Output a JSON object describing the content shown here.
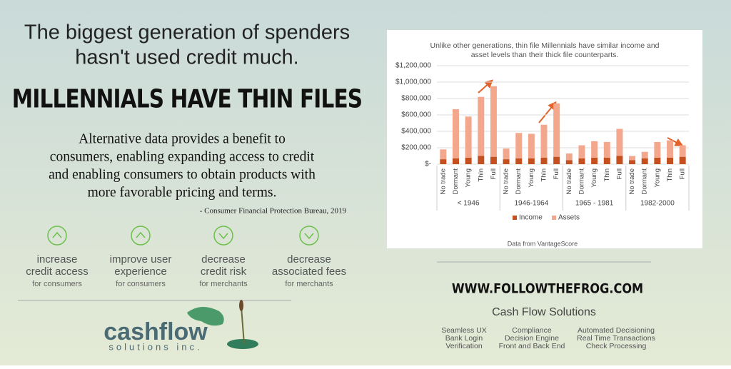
{
  "header": {
    "tagline_lines": [
      "The biggest generation of spenders",
      "hasn't used credit much."
    ],
    "headline": "MILLENNIALS HAVE THIN FILES"
  },
  "quote": {
    "lines": [
      "Alternative data provides a benefit to",
      "consumers, enabling expanding access to credit",
      "and enabling consumers to obtain products with",
      "more favorable pricing and terms."
    ],
    "source": "- Consumer Financial Protection Bureau, 2019"
  },
  "benefits": [
    {
      "icon": "up",
      "title_lines": [
        "increase",
        "credit access"
      ],
      "subtitle": "for consumers"
    },
    {
      "icon": "up",
      "title_lines": [
        "improve user",
        "experience"
      ],
      "subtitle": "for consumers"
    },
    {
      "icon": "down",
      "title_lines": [
        "decrease",
        "credit risk"
      ],
      "subtitle": "for merchants"
    },
    {
      "icon": "down",
      "title_lines": [
        "decrease",
        "associated fees"
      ],
      "subtitle": "for merchants"
    }
  ],
  "logo": {
    "name": "cashflow",
    "subtitle": "solutions inc."
  },
  "chart_data": {
    "type": "stacked-bar",
    "title_lines": [
      "Unlike other generations, thin file Millennials have similar income and",
      "asset levels than their thick file counterparts."
    ],
    "categories": [
      "No trade",
      "Dormant",
      "Young",
      "Thin",
      "Full",
      "No trade",
      "Dormant",
      "Young",
      "Thin",
      "Full",
      "No trade",
      "Dormant",
      "Young",
      "Thin",
      "Full",
      "No trade",
      "Dormant",
      "Young",
      "Thin",
      "Full"
    ],
    "groups": [
      "< 1946",
      "1946-1964",
      "1965 - 1981",
      "1982-2000"
    ],
    "series": [
      {
        "name": "Income",
        "color": "#c4501f",
        "values": [
          60000,
          70000,
          80000,
          100000,
          90000,
          60000,
          70000,
          70000,
          80000,
          90000,
          50000,
          70000,
          80000,
          80000,
          100000,
          50000,
          70000,
          80000,
          80000,
          90000
        ]
      },
      {
        "name": "Assets",
        "color": "#f3a88e",
        "values": [
          120000,
          600000,
          500000,
          720000,
          860000,
          130000,
          310000,
          300000,
          400000,
          650000,
          80000,
          160000,
          200000,
          190000,
          330000,
          50000,
          80000,
          190000,
          210000,
          140000
        ]
      }
    ],
    "ylim": [
      0,
      1200000
    ],
    "yticks": [
      {
        "value": 0,
        "label": "$-"
      },
      {
        "value": 200000,
        "label": "$200,000"
      },
      {
        "value": 400000,
        "label": "$400,000"
      },
      {
        "value": 600000,
        "label": "$600,000"
      },
      {
        "value": 800000,
        "label": "$800,000"
      },
      {
        "value": 1000000,
        "label": "$1,000,000"
      },
      {
        "value": 1200000,
        "label": "$1,200,000"
      }
    ],
    "grid": true,
    "legend": "bottom",
    "source_note": "Data from VantageScore"
  },
  "footer": {
    "url": "WWW.FOLLOWTHEFROG.COM",
    "company": "Cash Flow Solutions",
    "features": [
      [
        "Seamless UX",
        "Bank Login",
        "Verification"
      ],
      [
        "Compliance",
        "Decision Engine",
        "Front and Back End"
      ],
      [
        "Automated Decisioning",
        "Real Time Transactions",
        "Check Processing"
      ]
    ]
  }
}
